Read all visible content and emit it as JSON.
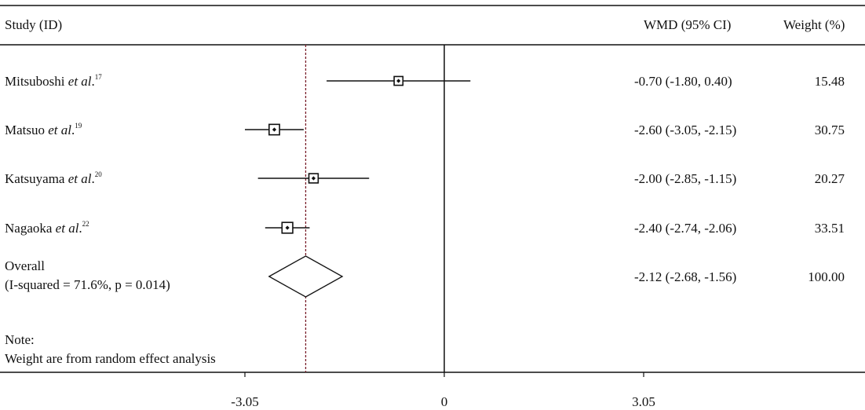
{
  "header": {
    "study": "Study (ID)",
    "wmd": "WMD (95% CI)",
    "weight": "Weight (%)"
  },
  "chart_data": {
    "type": "forest",
    "xlim": [
      -3.05,
      3.05
    ],
    "null_line": 0,
    "overall_line": -2.12,
    "colors": {
      "marker": "#111111",
      "overall_line": "#7a1f2b"
    },
    "studies": [
      {
        "name": "Mitsuboshi ",
        "etal": "et al",
        "dot": ".",
        "ref": "17",
        "est": -0.7,
        "lo": -1.8,
        "hi": 0.4,
        "ci_text": "-0.70 (-1.80, 0.40)",
        "weight": 15.48,
        "weight_text": "15.48"
      },
      {
        "name": "Matsuo ",
        "etal": "et al",
        "dot": ".",
        "ref": "19",
        "est": -2.6,
        "lo": -3.05,
        "hi": -2.15,
        "ci_text": "-2.60 (-3.05, -2.15)",
        "weight": 30.75,
        "weight_text": "30.75"
      },
      {
        "name": "Katsuyama ",
        "etal": "et al",
        "dot": ".",
        "ref": "20",
        "est": -2.0,
        "lo": -2.85,
        "hi": -1.15,
        "ci_text": "-2.00 (-2.85, -1.15)",
        "weight": 20.27,
        "weight_text": "20.27"
      },
      {
        "name": "Nagaoka ",
        "etal": "et al",
        "dot": ".",
        "ref": "22",
        "est": -2.4,
        "lo": -2.74,
        "hi": -2.06,
        "ci_text": "-2.40 (-2.74, -2.06)",
        "weight": 33.51,
        "weight_text": "33.51"
      }
    ],
    "overall": {
      "label": "Overall",
      "het": "(I-squared = 71.6%, p = 0.014)",
      "est": -2.12,
      "lo": -2.68,
      "hi": -1.56,
      "ci_text": "-2.12 (-2.68, -1.56)",
      "weight_text": "100.00"
    },
    "x_ticks": [
      {
        "value": -3.05,
        "label": "-3.05"
      },
      {
        "value": 0,
        "label": "0"
      },
      {
        "value": 3.05,
        "label": "3.05"
      }
    ]
  },
  "note": {
    "title": "Note:",
    "text": "Weight are from random effect analysis"
  }
}
